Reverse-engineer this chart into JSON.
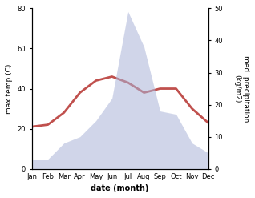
{
  "months": [
    "Jan",
    "Feb",
    "Mar",
    "Apr",
    "May",
    "Jun",
    "Jul",
    "Aug",
    "Sep",
    "Oct",
    "Nov",
    "Dec"
  ],
  "max_temp": [
    21,
    22,
    28,
    38,
    44,
    46,
    43,
    38,
    40,
    40,
    30,
    23
  ],
  "precipitation": [
    3,
    3,
    8,
    10,
    15,
    22,
    49,
    38,
    18,
    17,
    8,
    5
  ],
  "temp_color": "#c0504d",
  "precip_color": "#aab4d8",
  "precip_fill_alpha": 0.55,
  "xlabel": "date (month)",
  "ylabel_left": "max temp (C)",
  "ylabel_right": "med. precipitation\n(kg/m2)",
  "ylim_left": [
    0,
    80
  ],
  "ylim_right": [
    0,
    50
  ],
  "yticks_left": [
    0,
    20,
    40,
    60,
    80
  ],
  "yticks_right": [
    0,
    10,
    20,
    30,
    40,
    50
  ],
  "line_width": 2.0,
  "bg_color": "#ffffff"
}
